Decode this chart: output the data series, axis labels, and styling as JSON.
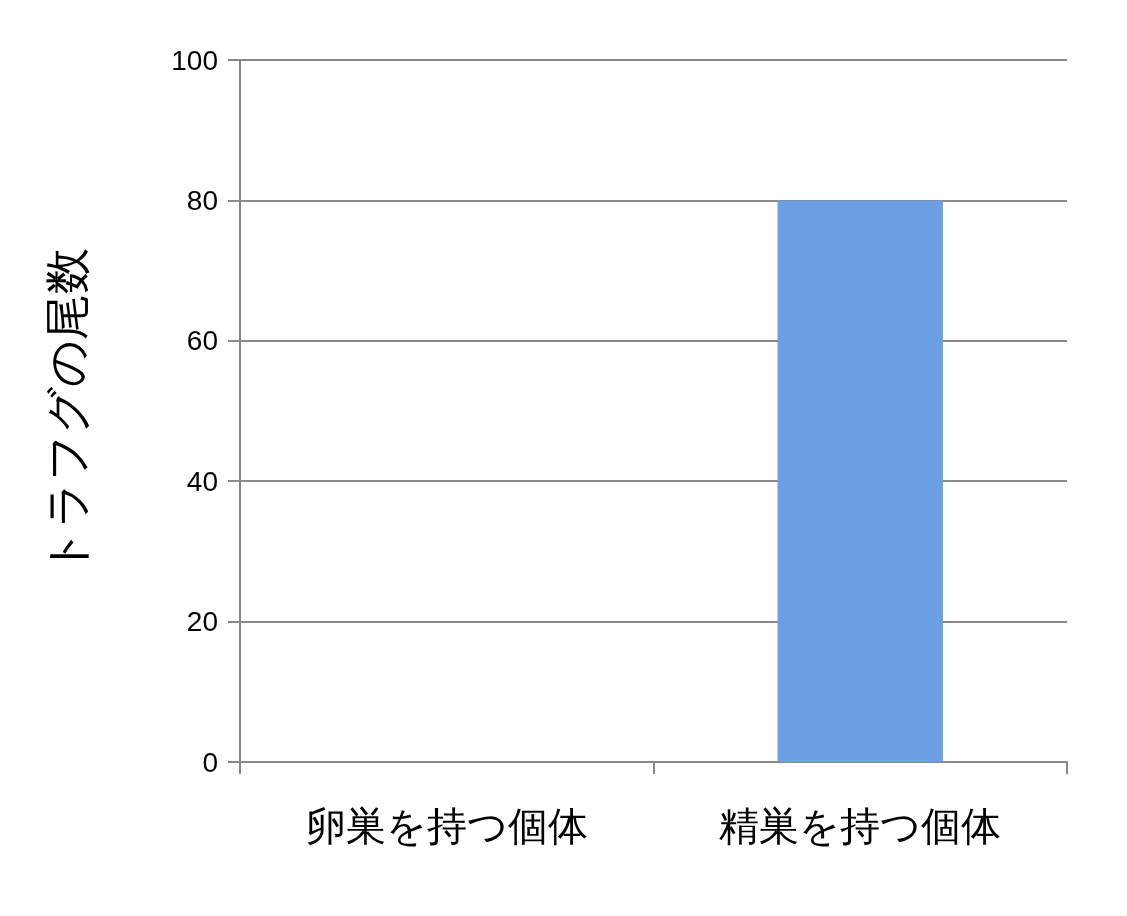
{
  "chart_data": {
    "type": "bar",
    "ylabel": "トラフグの尾数",
    "categories": [
      "卵巣を持つ個体",
      "精巣を持つ個体"
    ],
    "values": [
      0,
      80
    ],
    "color": "#6a9fe4",
    "ylim": [
      0,
      100
    ],
    "yticks": [
      0,
      20,
      40,
      60,
      80,
      100
    ],
    "grid": "y"
  }
}
